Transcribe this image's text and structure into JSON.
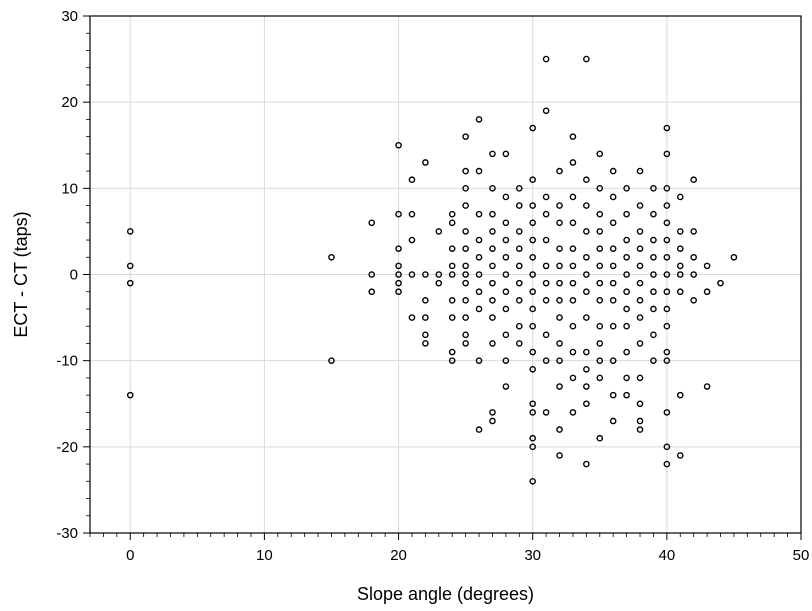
{
  "chart_data": {
    "type": "scatter",
    "title": "",
    "xlabel": "Slope angle (degrees)",
    "ylabel": "ECT - CT (taps)",
    "xlim": [
      -3,
      50
    ],
    "ylim": [
      -30,
      30
    ],
    "xticks": [
      0,
      10,
      20,
      30,
      40,
      50
    ],
    "yticks": [
      -30,
      -20,
      -10,
      0,
      10,
      20,
      30
    ],
    "grid": true,
    "legend": "none",
    "marker": "open-circle",
    "series": [
      {
        "points": [
          [
            0,
            5
          ],
          [
            0,
            1
          ],
          [
            0,
            -1
          ],
          [
            0,
            -14
          ],
          [
            15,
            2
          ],
          [
            15,
            -10
          ],
          [
            18,
            6
          ],
          [
            18,
            0
          ],
          [
            18,
            -2
          ],
          [
            20,
            15
          ],
          [
            20,
            7
          ],
          [
            20,
            3
          ],
          [
            20,
            1
          ],
          [
            20,
            0
          ],
          [
            20,
            -1
          ],
          [
            20,
            -2
          ],
          [
            21,
            11
          ],
          [
            21,
            7
          ],
          [
            21,
            4
          ],
          [
            21,
            0
          ],
          [
            21,
            -5
          ],
          [
            22,
            13
          ],
          [
            22,
            0
          ],
          [
            22,
            -3
          ],
          [
            22,
            -5
          ],
          [
            22,
            -7
          ],
          [
            22,
            -8
          ],
          [
            23,
            5
          ],
          [
            23,
            0
          ],
          [
            23,
            -1
          ],
          [
            24,
            7
          ],
          [
            24,
            6
          ],
          [
            24,
            3
          ],
          [
            24,
            1
          ],
          [
            24,
            0
          ],
          [
            24,
            -3
          ],
          [
            24,
            -5
          ],
          [
            24,
            -9
          ],
          [
            24,
            -10
          ],
          [
            25,
            16
          ],
          [
            25,
            12
          ],
          [
            25,
            10
          ],
          [
            25,
            8
          ],
          [
            25,
            5
          ],
          [
            25,
            3
          ],
          [
            25,
            1
          ],
          [
            25,
            0
          ],
          [
            25,
            -1
          ],
          [
            25,
            -3
          ],
          [
            25,
            -5
          ],
          [
            25,
            -7
          ],
          [
            25,
            -8
          ],
          [
            26,
            18
          ],
          [
            26,
            12
          ],
          [
            26,
            7
          ],
          [
            26,
            4
          ],
          [
            26,
            2
          ],
          [
            26,
            0
          ],
          [
            26,
            -2
          ],
          [
            26,
            -4
          ],
          [
            26,
            -10
          ],
          [
            26,
            -18
          ],
          [
            27,
            14
          ],
          [
            27,
            10
          ],
          [
            27,
            7
          ],
          [
            27,
            5
          ],
          [
            27,
            3
          ],
          [
            27,
            1
          ],
          [
            27,
            -1
          ],
          [
            27,
            -3
          ],
          [
            27,
            -5
          ],
          [
            27,
            -8
          ],
          [
            27,
            -16
          ],
          [
            27,
            -17
          ],
          [
            28,
            14
          ],
          [
            28,
            9
          ],
          [
            28,
            6
          ],
          [
            28,
            4
          ],
          [
            28,
            2
          ],
          [
            28,
            0
          ],
          [
            28,
            -2
          ],
          [
            28,
            -4
          ],
          [
            28,
            -7
          ],
          [
            28,
            -10
          ],
          [
            28,
            -13
          ],
          [
            29,
            10
          ],
          [
            29,
            8
          ],
          [
            29,
            5
          ],
          [
            29,
            3
          ],
          [
            29,
            1
          ],
          [
            29,
            -1
          ],
          [
            29,
            -3
          ],
          [
            29,
            -6
          ],
          [
            29,
            -8
          ],
          [
            30,
            17
          ],
          [
            30,
            11
          ],
          [
            30,
            8
          ],
          [
            30,
            6
          ],
          [
            30,
            4
          ],
          [
            30,
            2
          ],
          [
            30,
            0
          ],
          [
            30,
            -2
          ],
          [
            30,
            -4
          ],
          [
            30,
            -6
          ],
          [
            30,
            -9
          ],
          [
            30,
            -11
          ],
          [
            30,
            -15
          ],
          [
            30,
            -16
          ],
          [
            30,
            -19
          ],
          [
            30,
            -20
          ],
          [
            30,
            -24
          ],
          [
            31,
            25
          ],
          [
            31,
            19
          ],
          [
            31,
            9
          ],
          [
            31,
            7
          ],
          [
            31,
            4
          ],
          [
            31,
            1
          ],
          [
            31,
            -1
          ],
          [
            31,
            -3
          ],
          [
            31,
            -7
          ],
          [
            31,
            -10
          ],
          [
            31,
            -16
          ],
          [
            32,
            12
          ],
          [
            32,
            8
          ],
          [
            32,
            6
          ],
          [
            32,
            3
          ],
          [
            32,
            1
          ],
          [
            32,
            -1
          ],
          [
            32,
            -3
          ],
          [
            32,
            -5
          ],
          [
            32,
            -8
          ],
          [
            32,
            -10
          ],
          [
            32,
            -13
          ],
          [
            32,
            -18
          ],
          [
            32,
            -21
          ],
          [
            33,
            16
          ],
          [
            33,
            13
          ],
          [
            33,
            9
          ],
          [
            33,
            6
          ],
          [
            33,
            3
          ],
          [
            33,
            1
          ],
          [
            33,
            -1
          ],
          [
            33,
            -3
          ],
          [
            33,
            -6
          ],
          [
            33,
            -9
          ],
          [
            33,
            -12
          ],
          [
            33,
            -16
          ],
          [
            34,
            25
          ],
          [
            34,
            11
          ],
          [
            34,
            8
          ],
          [
            34,
            5
          ],
          [
            34,
            2
          ],
          [
            34,
            0
          ],
          [
            34,
            -2
          ],
          [
            34,
            -5
          ],
          [
            34,
            -9
          ],
          [
            34,
            -11
          ],
          [
            34,
            -13
          ],
          [
            34,
            -15
          ],
          [
            34,
            -22
          ],
          [
            35,
            14
          ],
          [
            35,
            10
          ],
          [
            35,
            7
          ],
          [
            35,
            5
          ],
          [
            35,
            3
          ],
          [
            35,
            1
          ],
          [
            35,
            -1
          ],
          [
            35,
            -3
          ],
          [
            35,
            -6
          ],
          [
            35,
            -8
          ],
          [
            35,
            -10
          ],
          [
            35,
            -12
          ],
          [
            35,
            -19
          ],
          [
            36,
            12
          ],
          [
            36,
            9
          ],
          [
            36,
            6
          ],
          [
            36,
            3
          ],
          [
            36,
            1
          ],
          [
            36,
            -1
          ],
          [
            36,
            -3
          ],
          [
            36,
            -6
          ],
          [
            36,
            -10
          ],
          [
            36,
            -14
          ],
          [
            36,
            -17
          ],
          [
            37,
            10
          ],
          [
            37,
            7
          ],
          [
            37,
            4
          ],
          [
            37,
            2
          ],
          [
            37,
            0
          ],
          [
            37,
            -2
          ],
          [
            37,
            -4
          ],
          [
            37,
            -6
          ],
          [
            37,
            -9
          ],
          [
            37,
            -12
          ],
          [
            37,
            -14
          ],
          [
            38,
            12
          ],
          [
            38,
            8
          ],
          [
            38,
            5
          ],
          [
            38,
            3
          ],
          [
            38,
            1
          ],
          [
            38,
            -1
          ],
          [
            38,
            -3
          ],
          [
            38,
            -5
          ],
          [
            38,
            -8
          ],
          [
            38,
            -12
          ],
          [
            38,
            -15
          ],
          [
            38,
            -17
          ],
          [
            38,
            -18
          ],
          [
            39,
            10
          ],
          [
            39,
            7
          ],
          [
            39,
            4
          ],
          [
            39,
            2
          ],
          [
            39,
            0
          ],
          [
            39,
            -2
          ],
          [
            39,
            -4
          ],
          [
            39,
            -7
          ],
          [
            39,
            -10
          ],
          [
            40,
            17
          ],
          [
            40,
            14
          ],
          [
            40,
            10
          ],
          [
            40,
            8
          ],
          [
            40,
            6
          ],
          [
            40,
            4
          ],
          [
            40,
            2
          ],
          [
            40,
            0
          ],
          [
            40,
            -2
          ],
          [
            40,
            -4
          ],
          [
            40,
            -6
          ],
          [
            40,
            -9
          ],
          [
            40,
            -10
          ],
          [
            40,
            -16
          ],
          [
            40,
            -20
          ],
          [
            40,
            -22
          ],
          [
            41,
            9
          ],
          [
            41,
            5
          ],
          [
            41,
            3
          ],
          [
            41,
            1
          ],
          [
            41,
            0
          ],
          [
            41,
            -2
          ],
          [
            41,
            -14
          ],
          [
            41,
            -21
          ],
          [
            42,
            11
          ],
          [
            42,
            5
          ],
          [
            42,
            2
          ],
          [
            42,
            0
          ],
          [
            42,
            -3
          ],
          [
            43,
            1
          ],
          [
            43,
            -2
          ],
          [
            43,
            -13
          ],
          [
            44,
            -1
          ],
          [
            45,
            2
          ]
        ]
      }
    ]
  }
}
